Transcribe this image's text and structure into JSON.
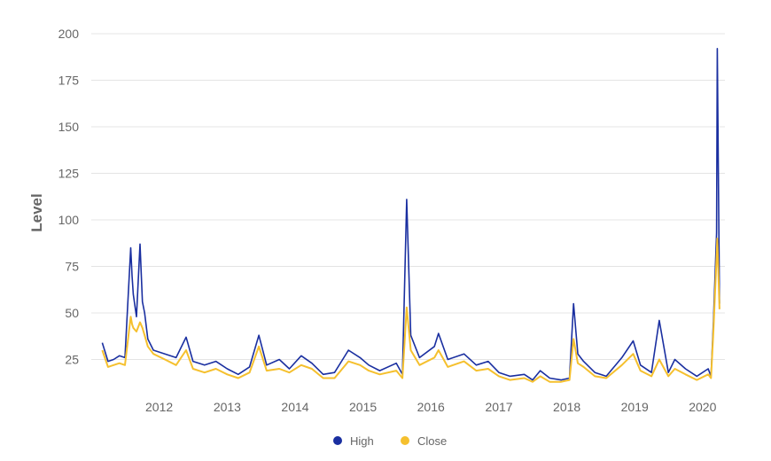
{
  "chart_data": {
    "type": "line",
    "title": "",
    "xlabel": "",
    "ylabel": "Level",
    "ylim": [
      0,
      200
    ],
    "yticks": [
      "25",
      "50",
      "75",
      "100",
      "125",
      "150",
      "175",
      "200"
    ],
    "xticks": [
      "2012",
      "2013",
      "2014",
      "2015",
      "2016",
      "2017",
      "2018",
      "2019",
      "2020"
    ],
    "grid": true,
    "legend_position": "bottom",
    "legend": [
      "High",
      "Close"
    ],
    "colors": {
      "High": "#1a2fa0",
      "Close": "#f5c02e"
    },
    "series": [
      {
        "name": "High",
        "x": [
          "2011-03-01",
          "2011-04-01",
          "2011-05-01",
          "2011-06-01",
          "2011-07-01",
          "2011-08-01",
          "2011-08-08",
          "2011-08-15",
          "2011-09-01",
          "2011-09-20",
          "2011-10-03",
          "2011-10-15",
          "2011-11-01",
          "2011-12-01",
          "2012-02-01",
          "2012-04-01",
          "2012-05-25",
          "2012-07-01",
          "2012-09-01",
          "2012-11-01",
          "2013-01-01",
          "2013-03-01",
          "2013-05-01",
          "2013-06-20",
          "2013-08-01",
          "2013-10-08",
          "2013-12-01",
          "2014-02-03",
          "2014-04-01",
          "2014-06-01",
          "2014-08-01",
          "2014-10-15",
          "2014-12-16",
          "2015-02-01",
          "2015-04-01",
          "2015-06-29",
          "2015-08-01",
          "2015-08-24",
          "2015-09-15",
          "2015-11-01",
          "2016-01-20",
          "2016-02-11",
          "2016-04-01",
          "2016-06-27",
          "2016-09-01",
          "2016-11-04",
          "2017-01-01",
          "2017-03-01",
          "2017-05-17",
          "2017-07-01",
          "2017-08-11",
          "2017-10-01",
          "2017-12-01",
          "2018-01-15",
          "2018-02-06",
          "2018-03-01",
          "2018-04-01",
          "2018-06-01",
          "2018-08-01",
          "2018-10-24",
          "2018-12-24",
          "2019-02-01",
          "2019-04-01",
          "2019-05-13",
          "2019-07-01",
          "2019-08-05",
          "2019-10-01",
          "2019-12-01",
          "2020-01-31",
          "2020-02-15",
          "2020-02-28",
          "2020-03-16",
          "2020-03-20",
          "2020-04-01"
        ],
        "values": [
          34,
          24,
          25,
          27,
          26,
          85,
          70,
          60,
          48,
          87,
          56,
          50,
          36,
          30,
          28,
          26,
          37,
          24,
          22,
          24,
          20,
          17,
          21,
          38,
          22,
          25,
          20,
          27,
          23,
          17,
          18,
          30,
          26,
          22,
          19,
          23,
          17,
          111,
          38,
          26,
          32,
          39,
          25,
          28,
          22,
          24,
          18,
          16,
          17,
          14,
          19,
          15,
          14,
          15,
          55,
          28,
          24,
          18,
          16,
          26,
          35,
          22,
          18,
          46,
          18,
          25,
          20,
          16,
          20,
          16,
          45,
          93,
          192,
          55
        ]
      },
      {
        "name": "Close",
        "x": [
          "2011-03-01",
          "2011-04-01",
          "2011-05-01",
          "2011-06-01",
          "2011-07-01",
          "2011-08-01",
          "2011-08-08",
          "2011-08-15",
          "2011-09-01",
          "2011-09-20",
          "2011-10-03",
          "2011-10-15",
          "2011-11-01",
          "2011-12-01",
          "2012-02-01",
          "2012-04-01",
          "2012-05-25",
          "2012-07-01",
          "2012-09-01",
          "2012-11-01",
          "2013-01-01",
          "2013-03-01",
          "2013-05-01",
          "2013-06-20",
          "2013-08-01",
          "2013-10-08",
          "2013-12-01",
          "2014-02-03",
          "2014-04-01",
          "2014-06-01",
          "2014-08-01",
          "2014-10-15",
          "2014-12-16",
          "2015-02-01",
          "2015-04-01",
          "2015-06-29",
          "2015-08-01",
          "2015-08-24",
          "2015-09-15",
          "2015-11-01",
          "2016-01-20",
          "2016-02-11",
          "2016-04-01",
          "2016-06-27",
          "2016-09-01",
          "2016-11-04",
          "2017-01-01",
          "2017-03-01",
          "2017-05-17",
          "2017-07-01",
          "2017-08-11",
          "2017-10-01",
          "2017-12-01",
          "2018-01-15",
          "2018-02-06",
          "2018-03-01",
          "2018-04-01",
          "2018-06-01",
          "2018-08-01",
          "2018-10-24",
          "2018-12-24",
          "2019-02-01",
          "2019-04-01",
          "2019-05-13",
          "2019-07-01",
          "2019-08-05",
          "2019-10-01",
          "2019-12-01",
          "2020-01-31",
          "2020-02-15",
          "2020-02-28",
          "2020-03-16",
          "2020-03-20",
          "2020-04-01"
        ],
        "values": [
          30,
          21,
          22,
          23,
          22,
          48,
          44,
          42,
          40,
          45,
          42,
          38,
          32,
          28,
          25,
          22,
          30,
          20,
          18,
          20,
          17,
          15,
          18,
          32,
          19,
          20,
          18,
          22,
          20,
          15,
          15,
          24,
          22,
          19,
          17,
          19,
          15,
          53,
          30,
          22,
          26,
          30,
          21,
          24,
          19,
          20,
          16,
          14,
          15,
          13,
          16,
          13,
          13,
          14,
          36,
          23,
          21,
          16,
          15,
          22,
          28,
          19,
          16,
          25,
          16,
          20,
          17,
          14,
          17,
          15,
          40,
          80,
          90,
          52
        ]
      }
    ]
  }
}
